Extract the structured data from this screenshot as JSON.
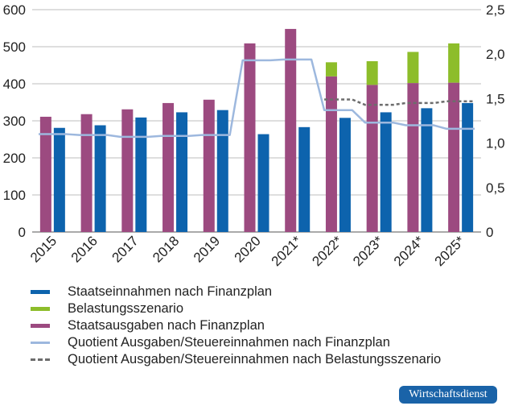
{
  "chart_data": {
    "type": "bar",
    "categories": [
      "2015",
      "2016",
      "2017",
      "2018",
      "2019",
      "2020",
      "2021*",
      "2022*",
      "2023*",
      "2024*",
      "2025*"
    ],
    "y_left": {
      "ylim": [
        0,
        600
      ],
      "ticks": [
        0,
        100,
        200,
        300,
        400,
        500,
        600
      ]
    },
    "y_right": {
      "ylim": [
        0,
        2.5
      ],
      "ticks": [
        0,
        0.5,
        1.0,
        1.5,
        2.0,
        2.5
      ],
      "tick_labels": [
        "0",
        "0,5",
        "1,0",
        "1,5",
        "2,0",
        "2,5"
      ]
    },
    "series": [
      {
        "name": "Staatseinnahmen nach Finanzplan",
        "kind": "bar",
        "axis": "left",
        "color": "#0d63ad",
        "values": [
          281,
          288,
          309,
          323,
          329,
          264,
          283,
          308,
          323,
          334,
          348
        ]
      },
      {
        "name": "Belastungsszenario",
        "kind": "bar-stack",
        "axis": "left",
        "color": "#8dbd2a",
        "values": [
          null,
          null,
          null,
          null,
          null,
          null,
          null,
          38,
          64,
          84,
          106
        ]
      },
      {
        "name": "Staatsausgaben nach Finanzplan",
        "kind": "bar",
        "axis": "left",
        "color": "#9c4a80",
        "values": [
          311,
          318,
          331,
          348,
          357,
          509,
          548,
          420,
          397,
          402,
          403
        ]
      },
      {
        "name": "Quotient Ausgaben/Steuereinnahmen nach Finanzplan",
        "kind": "line",
        "axis": "right",
        "color": "#9db8de",
        "values": [
          1.1,
          1.09,
          1.07,
          1.08,
          1.09,
          1.93,
          1.94,
          1.37,
          1.23,
          1.2,
          1.16
        ]
      },
      {
        "name": "Quotient Ausgaben/Steuereinnahmen nach Belastungsszenario",
        "kind": "dashed-line",
        "axis": "right",
        "color": "#6d6d6d",
        "values": [
          null,
          null,
          null,
          null,
          null,
          null,
          null,
          1.49,
          1.43,
          1.45,
          1.47
        ]
      }
    ],
    "grid": true,
    "legend_position": "bottom"
  },
  "branding": {
    "label": "Wirtschaftsdienst"
  }
}
